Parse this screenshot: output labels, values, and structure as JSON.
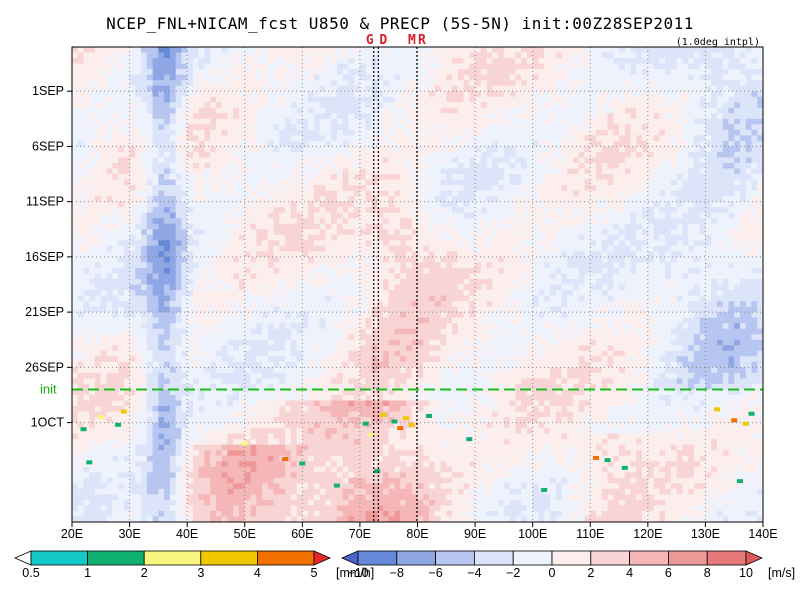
{
  "title": "NCEP_FNL+NICAM_fcst U850 & PRECP (5S-5N) init:00Z28SEP2011",
  "resolution_note": "(1.0deg intpl)",
  "chart_data": {
    "type": "heatmap",
    "title": "NCEP_FNL+NICAM_fcst U850 & PRECP (5S-5N) init:00Z28SEP2011",
    "x_axis": {
      "range": [
        20,
        140
      ],
      "ticks": [
        20,
        30,
        40,
        50,
        60,
        70,
        80,
        90,
        100,
        110,
        120,
        130,
        140
      ],
      "tick_labels": [
        "20E",
        "30E",
        "40E",
        "50E",
        "60E",
        "70E",
        "80E",
        "90E",
        "100E",
        "110E",
        "120E",
        "130E",
        "140E"
      ]
    },
    "y_axis": {
      "range_days_from_1SEP": [
        -4,
        39
      ],
      "ticks_days_from_1SEP": [
        0,
        5,
        10,
        15,
        20,
        25,
        30
      ],
      "tick_labels": [
        "1SEP",
        "6SEP",
        "11SEP",
        "16SEP",
        "21SEP",
        "26SEP",
        "1OCT"
      ],
      "inverted": true
    },
    "grid": true,
    "init_line": {
      "label": "init",
      "day": 27,
      "color": "#18c018"
    },
    "station_lines": [
      {
        "label": "G",
        "lon": 72.4
      },
      {
        "label": "D",
        "lon": 73.2
      },
      {
        "label": "M",
        "lon": 79.9
      },
      {
        "label": "R",
        "lon": 79.9
      }
    ],
    "wind_colorbar": {
      "unit": "[m/s]",
      "levels": [
        -10,
        -8,
        -6,
        -4,
        -2,
        0,
        2,
        4,
        6,
        8,
        10
      ],
      "colors": [
        "#4666c8",
        "#6688d8",
        "#8ea6e4",
        "#b6c6f0",
        "#dbe4f8",
        "#eef2fc",
        "#fdeeee",
        "#f9d4d4",
        "#f4b6b6",
        "#ee9898",
        "#e67a7a",
        "#e05a5a"
      ]
    },
    "precip_colorbar": {
      "unit": "[mm/h]",
      "levels": [
        0.5,
        1,
        2,
        3,
        4,
        5
      ],
      "colors": [
        "#ffffff",
        "#14c8c8",
        "#10b070",
        "#f8f880",
        "#f0c800",
        "#f07000",
        "#e82828"
      ]
    },
    "precip_events": [
      {
        "lon": 29,
        "day": 29.0,
        "value": 3
      },
      {
        "lon": 25,
        "day": 29.5,
        "value": 2
      },
      {
        "lon": 22,
        "day": 30.6,
        "value": 1
      },
      {
        "lon": 28,
        "day": 30.2,
        "value": 1
      },
      {
        "lon": 23,
        "day": 33.6,
        "value": 1
      },
      {
        "lon": 50,
        "day": 31.9,
        "value": 2
      },
      {
        "lon": 57,
        "day": 33.3,
        "value": 4
      },
      {
        "lon": 60,
        "day": 33.7,
        "value": 1
      },
      {
        "lon": 66,
        "day": 35.7,
        "value": 1
      },
      {
        "lon": 71,
        "day": 30.1,
        "value": 1
      },
      {
        "lon": 72,
        "day": 31.1,
        "value": 2
      },
      {
        "lon": 73,
        "day": 34.4,
        "value": 1
      },
      {
        "lon": 74,
        "day": 29.3,
        "value": 3
      },
      {
        "lon": 76,
        "day": 29.9,
        "value": 1
      },
      {
        "lon": 77,
        "day": 30.5,
        "value": 4
      },
      {
        "lon": 78,
        "day": 29.6,
        "value": 3
      },
      {
        "lon": 79,
        "day": 30.2,
        "value": 3
      },
      {
        "lon": 82,
        "day": 29.4,
        "value": 1
      },
      {
        "lon": 89,
        "day": 31.5,
        "value": 1
      },
      {
        "lon": 102,
        "day": 36.1,
        "value": 1
      },
      {
        "lon": 111,
        "day": 33.2,
        "value": 4
      },
      {
        "lon": 113,
        "day": 33.4,
        "value": 1
      },
      {
        "lon": 116,
        "day": 34.1,
        "value": 1
      },
      {
        "lon": 132,
        "day": 28.8,
        "value": 3
      },
      {
        "lon": 135,
        "day": 29.8,
        "value": 4
      },
      {
        "lon": 137,
        "day": 30.1,
        "value": 3
      },
      {
        "lon": 138,
        "day": 29.2,
        "value": 1
      },
      {
        "lon": 136,
        "day": 35.3,
        "value": 1
      }
    ]
  }
}
